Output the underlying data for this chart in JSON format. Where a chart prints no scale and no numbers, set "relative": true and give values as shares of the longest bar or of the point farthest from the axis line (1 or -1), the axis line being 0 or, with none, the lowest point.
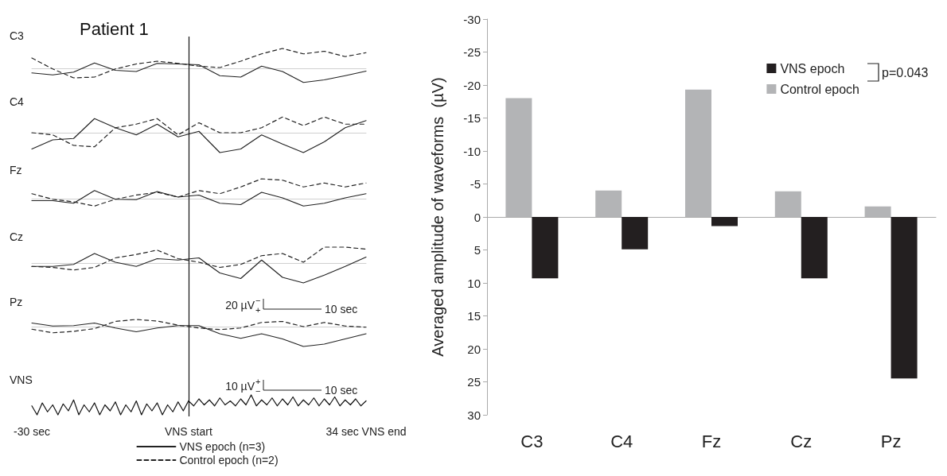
{
  "chart_data": [
    {
      "type": "line",
      "title": "Patient 1",
      "ylabel": "C3",
      "x": [
        -30,
        -26,
        -22,
        -18,
        -14,
        -10,
        -6,
        -2,
        2,
        6,
        10,
        14,
        18,
        22,
        26,
        30,
        34
      ],
      "xlim": [
        -30,
        34
      ],
      "relative": true,
      "tick_labels": false,
      "ref_lines": [
        {
          "axis": "x",
          "value": 0,
          "color": "#111111"
        }
      ],
      "series": [
        {
          "color": "#222222",
          "line_style": "solid",
          "values": [
            -0.23,
            -0.33,
            -0.19,
            0.27,
            -0.1,
            -0.16,
            0.25,
            0.22,
            0.18,
            -0.37,
            -0.44,
            0.11,
            -0.16,
            -0.71,
            -0.58,
            -0.37,
            -0.14
          ]
        },
        {
          "color": "#222222",
          "line_style": "dashed",
          "values": [
            0.52,
            -0.03,
            -0.48,
            -0.44,
            -0.03,
            0.22,
            0.36,
            0.25,
            0.11,
            0.04,
            0.36,
            0.73,
            1,
            0.73,
            0.86,
            0.59,
            0.79
          ]
        }
      ]
    },
    {
      "type": "line",
      "ylabel": "C4",
      "x": [
        -30,
        -26,
        -22,
        -18,
        -14,
        -10,
        -6,
        -2,
        2,
        6,
        10,
        14,
        18,
        22,
        26,
        30,
        34
      ],
      "xlim": [
        -30,
        34
      ],
      "relative": true,
      "tick_labels": false,
      "ref_lines": [
        {
          "axis": "x",
          "value": 0,
          "color": "#111111"
        }
      ],
      "series": [
        {
          "color": "#222222",
          "line_style": "solid",
          "values": [
            -0.82,
            -0.36,
            -0.29,
            0.71,
            0.25,
            -0.11,
            0.43,
            -0.21,
            0.07,
            -1,
            -0.82,
            -0.11,
            -0.57,
            -1,
            -0.46,
            0.25,
            0.61
          ]
        },
        {
          "color": "#222222",
          "line_style": "dashed",
          "values": [
            0,
            -0.11,
            -0.64,
            -0.71,
            0.25,
            0.43,
            0.71,
            -0.11,
            0.5,
            0,
            0,
            0.25,
            0.79,
            0.36,
            0.79,
            0.43,
            0.43
          ]
        }
      ]
    },
    {
      "type": "line",
      "ylabel": "Fz",
      "x": [
        -30,
        -26,
        -22,
        -18,
        -14,
        -10,
        -6,
        -2,
        2,
        6,
        10,
        14,
        18,
        22,
        26,
        30,
        34
      ],
      "xlim": [
        -30,
        34
      ],
      "relative": true,
      "tick_labels": false,
      "ref_lines": [
        {
          "axis": "x",
          "value": 0,
          "color": "#111111"
        }
      ],
      "series": [
        {
          "color": "#222222",
          "line_style": "solid",
          "values": [
            -0.1,
            -0.1,
            -0.23,
            0.41,
            -0.03,
            -0.05,
            0.36,
            0.08,
            0.18,
            -0.23,
            -0.3,
            0.32,
            0.04,
            -0.37,
            -0.23,
            0.04,
            0.25
          ]
        },
        {
          "color": "#222222",
          "line_style": "dashed",
          "values": [
            0.25,
            -0.03,
            -0.16,
            -0.37,
            -0.03,
            0.18,
            0.32,
            0.08,
            0.41,
            0.25,
            0.59,
            1,
            0.93,
            0.59,
            0.79,
            0.59,
            0.79
          ]
        }
      ]
    },
    {
      "type": "line",
      "ylabel": "Cz",
      "x": [
        -30,
        -26,
        -22,
        -18,
        -14,
        -10,
        -6,
        -2,
        2,
        6,
        10,
        14,
        18,
        22,
        26,
        30,
        34
      ],
      "xlim": [
        -30,
        34
      ],
      "relative": true,
      "tick_labels": false,
      "ref_lines": [
        {
          "axis": "x",
          "value": 0,
          "color": "#111111"
        }
      ],
      "series": [
        {
          "color": "#222222",
          "line_style": "solid",
          "values": [
            -0.17,
            -0.17,
            -0.07,
            0.48,
            0.04,
            -0.17,
            0.22,
            0.15,
            0.26,
            -0.5,
            -0.78,
            0.15,
            -0.72,
            -1,
            -0.61,
            -0.17,
            0.3
          ]
        },
        {
          "color": "#222222",
          "line_style": "dashed",
          "values": [
            -0.17,
            -0.22,
            -0.35,
            -0.22,
            0.26,
            0.43,
            0.65,
            0.22,
            0.04,
            -0.22,
            -0.07,
            0.37,
            0.48,
            0.04,
            0.8,
            0.8,
            0.7
          ]
        }
      ]
    },
    {
      "type": "line",
      "ylabel": "Pz",
      "x": [
        -30,
        -26,
        -22,
        -18,
        -14,
        -10,
        -6,
        -2,
        2,
        6,
        10,
        14,
        18,
        22,
        26,
        30,
        34
      ],
      "xlim": [
        -30,
        34
      ],
      "relative": true,
      "tick_labels": false,
      "legend": "bottom",
      "annotations": [
        "20 µV$^{−}$$_{+}$",
        "10 sec"
      ],
      "ref_lines": [
        {
          "axis": "x",
          "value": 0,
          "color": "#111111"
        }
      ],
      "series": [
        {
          "name": "VNS epoch (n=3)",
          "color": "#222222",
          "line_style": "solid",
          "values": [
            0.18,
            0.03,
            0.05,
            0.18,
            -0.07,
            -0.26,
            -0.07,
            0.05,
            0.05,
            -0.36,
            -0.59,
            -0.36,
            -0.62,
            -1,
            -0.88,
            -0.62,
            -0.36
          ]
        },
        {
          "name": "Control epoch (n=2)",
          "color": "#222222",
          "line_style": "dashed",
          "values": [
            -0.13,
            -0.31,
            -0.24,
            -0.1,
            0.26,
            0.36,
            0.28,
            0.07,
            -0.07,
            -0.15,
            -0.07,
            0.21,
            0.26,
            0,
            0.21,
            0.03,
            -0.03
          ]
        }
      ]
    },
    {
      "type": "line",
      "ylabel": "VNS",
      "x": [
        -30,
        -29,
        -28,
        -27,
        -26,
        -25,
        -24,
        -23,
        -22,
        -21,
        -20,
        -19,
        -18,
        -17,
        -16,
        -15,
        -14,
        -13,
        -12,
        -11,
        -10,
        -9,
        -8,
        -7,
        -6,
        -5,
        -4,
        -3,
        -2,
        -1,
        0,
        1,
        2,
        3,
        4,
        5,
        6,
        7,
        8,
        9,
        10,
        11,
        12,
        13,
        14,
        15,
        16,
        17,
        18,
        19,
        20,
        21,
        22,
        23,
        24,
        25,
        26,
        27,
        28,
        29,
        30,
        31,
        32,
        33,
        34
      ],
      "xlim": [
        -30,
        34
      ],
      "xticks": [
        {
          "value": -30,
          "label": "-30 sec"
        },
        {
          "value": 0,
          "label": "VNS start"
        },
        {
          "value": 34,
          "label": "34 sec VNS end"
        }
      ],
      "relative": true,
      "tick_labels": "x",
      "annotations": [
        "10 µV$^{+}$$_{−}$",
        "10 sec"
      ],
      "ref_lines": [
        {
          "axis": "x",
          "value": 0,
          "color": "#111111"
        }
      ],
      "series": [
        {
          "color": "#111111",
          "line_style": "solid",
          "values": [
            0.45,
            0,
            0.6,
            0.15,
            0.5,
            0,
            0.55,
            0.2,
            0.75,
            0,
            0.5,
            0.15,
            0.6,
            0,
            0.5,
            0.2,
            0.65,
            0,
            0.5,
            0.15,
            0.7,
            0,
            0.55,
            0.2,
            0.6,
            0,
            0.5,
            0.15,
            0.65,
            0.2,
            0.7,
            0.45,
            0.8,
            0.5,
            0.75,
            0.45,
            0.85,
            0.5,
            0.7,
            0.45,
            0.8,
            0.5,
            1,
            0.45,
            0.75,
            0.5,
            0.85,
            0.45,
            0.8,
            0.5,
            0.9,
            0.45,
            0.75,
            0.5,
            0.85,
            0.45,
            0.8,
            0.5,
            0.9,
            0.45,
            0.75,
            0.5,
            0.8,
            0.45,
            0.7
          ]
        }
      ]
    },
    {
      "type": "bar",
      "ylabel": "Averaged amplitude of waveforms  (µV)",
      "categories": [
        "C3",
        "C4",
        "Fz",
        "Cz",
        "Pz"
      ],
      "ylim": [
        30,
        -30
      ],
      "yticks": [
        -30,
        -25,
        -20,
        -15,
        -10,
        -5,
        0,
        5,
        10,
        15,
        20,
        25,
        30
      ],
      "legend": "top right",
      "annotations": [
        "p=0.043"
      ],
      "series": [
        {
          "name": "Control epoch",
          "color": "#b3b4b6",
          "values": [
            -18,
            -4,
            -19.3,
            -3.9,
            -1.6
          ]
        },
        {
          "name": "VNS epoch",
          "color": "#231f20",
          "values": [
            9.3,
            4.9,
            1.4,
            9.3,
            24.5
          ]
        }
      ]
    }
  ]
}
